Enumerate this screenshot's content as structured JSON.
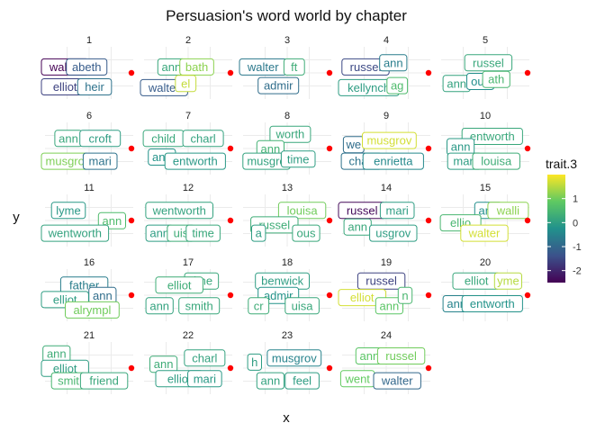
{
  "chart_data": {
    "type": "scatter",
    "title": "Persuasion's word world by chapter",
    "xlabel": "x",
    "ylabel": "y",
    "facet_by": "chapter",
    "legend": {
      "title": "trait.3",
      "position": "right",
      "ticks": [
        1,
        0,
        -1,
        -2
      ],
      "range": [
        -2.5,
        2.0
      ],
      "palette": [
        "#440154",
        "#3b528b",
        "#21918c",
        "#5ec962",
        "#fde725"
      ]
    },
    "grid": true,
    "panels": [
      {
        "chapter": "1",
        "words": [
          {
            "word": "walter",
            "x": 0.12,
            "y": 0.4,
            "trait3": -2.5
          },
          {
            "word": "elizabeth",
            "x": 0.48,
            "y": 0.4,
            "trait3": -1.2,
            "shown": "abeth"
          },
          {
            "word": "elliot",
            "x": 0.1,
            "y": 0.88,
            "trait3": -1.6
          },
          {
            "word": "heir",
            "x": 0.58,
            "y": 0.88,
            "trait3": -0.8
          }
        ]
      },
      {
        "chapter": "2",
        "words": [
          {
            "word": "ann",
            "x": 0.3,
            "y": 0.4,
            "trait3": 0.2
          },
          {
            "word": "bath",
            "x": 0.62,
            "y": 0.4,
            "trait3": 1.2,
            "shown": "bath"
          },
          {
            "word": "walter",
            "x": 0.15,
            "y": 0.9,
            "trait3": -1.2
          },
          {
            "word": "isabel",
            "x": 0.48,
            "y": 0.8,
            "trait3": 1.6,
            "shown": "el"
          }
        ]
      },
      {
        "chapter": "3",
        "words": [
          {
            "word": "walter",
            "x": 0.15,
            "y": 0.4,
            "trait3": -0.7
          },
          {
            "word": "croft",
            "x": 0.6,
            "y": 0.4,
            "trait3": 0.3,
            "shown": "ft"
          },
          {
            "word": "admir",
            "x": 0.4,
            "y": 0.85,
            "trait3": -0.9
          }
        ]
      },
      {
        "chapter": "4",
        "words": [
          {
            "word": "russel",
            "x": 0.25,
            "y": 0.4,
            "trait3": -1.5
          },
          {
            "word": "ann",
            "x": 0.6,
            "y": 0.3,
            "trait3": -0.6
          },
          {
            "word": "kellynch",
            "x": 0.2,
            "y": 0.9,
            "trait3": 0.0
          },
          {
            "word": "bag",
            "x": 0.65,
            "y": 0.85,
            "trait3": 0.6,
            "shown": "ag"
          }
        ]
      },
      {
        "chapter": "5",
        "words": [
          {
            "word": "russel",
            "x": 0.55,
            "y": 0.3,
            "trait3": 0.2
          },
          {
            "word": "ann",
            "x": 0.15,
            "y": 0.8,
            "trait3": 0.1
          },
          {
            "word": "house",
            "x": 0.45,
            "y": 0.75,
            "trait3": -0.3,
            "shown": "ous"
          },
          {
            "word": "bath",
            "x": 0.65,
            "y": 0.7,
            "trait3": 0.5,
            "shown": "ath"
          }
        ]
      },
      {
        "chapter": "6",
        "words": [
          {
            "word": "ann",
            "x": 0.25,
            "y": 0.3,
            "trait3": 0.2
          },
          {
            "word": "croft",
            "x": 0.65,
            "y": 0.3,
            "trait3": 0.0
          },
          {
            "word": "musgrove",
            "x": 0.15,
            "y": 0.85,
            "trait3": 1.1,
            "shown": "musgro"
          },
          {
            "word": "mari",
            "x": 0.65,
            "y": 0.85,
            "trait3": -0.8
          }
        ]
      },
      {
        "chapter": "7",
        "words": [
          {
            "word": "child",
            "x": 0.2,
            "y": 0.3,
            "trait3": 0.2
          },
          {
            "word": "charl",
            "x": 0.7,
            "y": 0.3,
            "trait3": 0.1
          },
          {
            "word": "ann",
            "x": 0.18,
            "y": 0.75,
            "trait3": -0.2
          },
          {
            "word": "wentworth",
            "x": 0.6,
            "y": 0.85,
            "trait3": -0.1,
            "shown": "entworth"
          }
        ]
      },
      {
        "chapter": "8",
        "words": [
          {
            "word": "wentworth",
            "x": 0.55,
            "y": 0.2,
            "trait3": 0.2,
            "shown": "worth"
          },
          {
            "word": "ann",
            "x": 0.3,
            "y": 0.55,
            "trait3": 0.4
          },
          {
            "word": "musgrove",
            "x": 0.25,
            "y": 0.85,
            "trait3": 0.1,
            "shown": "musgro"
          },
          {
            "word": "time",
            "x": 0.65,
            "y": 0.8,
            "trait3": 0.0
          }
        ]
      },
      {
        "chapter": "9",
        "words": [
          {
            "word": "wentworth",
            "x": 0.1,
            "y": 0.45,
            "trait3": -0.9,
            "shown": "we"
          },
          {
            "word": "musgrov",
            "x": 0.55,
            "y": 0.35,
            "trait3": 1.7
          },
          {
            "word": "charl",
            "x": 0.2,
            "y": 0.85,
            "trait3": -0.8
          },
          {
            "word": "henrietta",
            "x": 0.6,
            "y": 0.85,
            "trait3": -0.4,
            "shown": "enrietta"
          }
        ]
      },
      {
        "chapter": "10",
        "words": [
          {
            "word": "wentworth",
            "x": 0.6,
            "y": 0.25,
            "trait3": 0.2,
            "shown": "entworth"
          },
          {
            "word": "ann",
            "x": 0.2,
            "y": 0.5,
            "trait3": -0.1
          },
          {
            "word": "mari",
            "x": 0.25,
            "y": 0.85,
            "trait3": 0.0
          },
          {
            "word": "louisa",
            "x": 0.65,
            "y": 0.85,
            "trait3": 0.3
          }
        ]
      },
      {
        "chapter": "11",
        "words": [
          {
            "word": "lyme",
            "x": 0.25,
            "y": 0.3,
            "trait3": -0.1
          },
          {
            "word": "ann",
            "x": 0.8,
            "y": 0.55,
            "trait3": 0.6
          },
          {
            "word": "wentworth",
            "x": 0.3,
            "y": 0.85,
            "trait3": 0.1,
            "shown": "wentworth"
          }
        ]
      },
      {
        "chapter": "12",
        "words": [
          {
            "word": "wentworth",
            "x": 0.4,
            "y": 0.3,
            "trait3": 0.1
          },
          {
            "word": "ann",
            "x": 0.15,
            "y": 0.85,
            "trait3": 0.0
          },
          {
            "word": "louisa",
            "x": 0.42,
            "y": 0.85,
            "trait3": 0.3,
            "shown": "uis"
          },
          {
            "word": "time",
            "x": 0.7,
            "y": 0.85,
            "trait3": 0.2
          }
        ]
      },
      {
        "chapter": "13",
        "words": [
          {
            "word": "louisa",
            "x": 0.7,
            "y": 0.3,
            "trait3": 1.0
          },
          {
            "word": "russel",
            "x": 0.35,
            "y": 0.65,
            "trait3": 0.3
          },
          {
            "word": "ann",
            "x": 0.15,
            "y": 0.85,
            "trait3": 0.0,
            "shown": "a"
          },
          {
            "word": "house",
            "x": 0.75,
            "y": 0.85,
            "trait3": 0.2,
            "shown": "ous"
          }
        ]
      },
      {
        "chapter": "14",
        "words": [
          {
            "word": "russel",
            "x": 0.2,
            "y": 0.3,
            "trait3": -2.4
          },
          {
            "word": "mari",
            "x": 0.65,
            "y": 0.3,
            "trait3": 0.0
          },
          {
            "word": "ann",
            "x": 0.15,
            "y": 0.7,
            "trait3": 0.2
          },
          {
            "word": "musgrove",
            "x": 0.6,
            "y": 0.85,
            "trait3": 0.0,
            "shown": "usgrov"
          }
        ]
      },
      {
        "chapter": "15",
        "words": [
          {
            "word": "ann",
            "x": 0.55,
            "y": 0.3,
            "trait3": -0.3
          },
          {
            "word": "walli",
            "x": 0.8,
            "y": 0.3,
            "trait3": 1.2
          },
          {
            "word": "elliot",
            "x": 0.2,
            "y": 0.6,
            "trait3": 0.5,
            "shown": "ellio"
          },
          {
            "word": "walter",
            "x": 0.5,
            "y": 0.85,
            "trait3": 1.7
          }
        ]
      },
      {
        "chapter": "16",
        "words": [
          {
            "word": "father",
            "x": 0.45,
            "y": 0.3,
            "trait3": -0.6
          },
          {
            "word": "ann",
            "x": 0.68,
            "y": 0.55,
            "trait3": -0.9
          },
          {
            "word": "elliot",
            "x": 0.15,
            "y": 0.65,
            "trait3": 0.0
          },
          {
            "word": "dalrymple",
            "x": 0.55,
            "y": 0.9,
            "trait3": 1.0,
            "shown": "alrympl"
          }
        ]
      },
      {
        "chapter": "17",
        "words": [
          {
            "word": "time",
            "x": 0.68,
            "y": 0.2,
            "trait3": 0.2
          },
          {
            "word": "elliot",
            "x": 0.4,
            "y": 0.3,
            "trait3": 0.3
          },
          {
            "word": "ann",
            "x": 0.15,
            "y": 0.8,
            "trait3": 0.1
          },
          {
            "word": "smith",
            "x": 0.65,
            "y": 0.8,
            "trait3": 0.2
          }
        ]
      },
      {
        "chapter": "18",
        "words": [
          {
            "word": "benwick",
            "x": 0.45,
            "y": 0.2,
            "trait3": 0.0
          },
          {
            "word": "admir",
            "x": 0.4,
            "y": 0.55,
            "trait3": -0.2
          },
          {
            "word": "croft",
            "x": 0.15,
            "y": 0.8,
            "trait3": 0.3,
            "shown": "cr"
          },
          {
            "word": "louisa",
            "x": 0.7,
            "y": 0.8,
            "trait3": 0.2,
            "shown": "uisa"
          }
        ]
      },
      {
        "chapter": "19",
        "words": [
          {
            "word": "russel",
            "x": 0.45,
            "y": 0.2,
            "trait3": -1.6
          },
          {
            "word": "elliot",
            "x": 0.2,
            "y": 0.6,
            "trait3": 1.7
          },
          {
            "word": "ann",
            "x": 0.55,
            "y": 0.8,
            "trait3": 0.8
          },
          {
            "word": "mari",
            "x": 0.75,
            "y": 0.55,
            "trait3": 0.5,
            "shown": "n"
          }
        ]
      },
      {
        "chapter": "20",
        "words": [
          {
            "word": "elliot",
            "x": 0.4,
            "y": 0.2,
            "trait3": 0.2
          },
          {
            "word": "lyme",
            "x": 0.8,
            "y": 0.2,
            "trait3": 1.5,
            "shown": "yme"
          },
          {
            "word": "ann",
            "x": 0.15,
            "y": 0.75,
            "trait3": -0.5
          },
          {
            "word": "wentworth",
            "x": 0.6,
            "y": 0.75,
            "trait3": -0.2,
            "shown": "entworth"
          }
        ]
      },
      {
        "chapter": "21",
        "words": [
          {
            "word": "ann",
            "x": 0.1,
            "y": 0.2,
            "trait3": 0.3
          },
          {
            "word": "elliot",
            "x": 0.18,
            "y": 0.55,
            "trait3": 0.0
          },
          {
            "word": "smith",
            "x": 0.25,
            "y": 0.85,
            "trait3": 0.5,
            "shown": "smit"
          },
          {
            "word": "friend",
            "x": 0.7,
            "y": 0.85,
            "trait3": 0.2
          }
        ]
      },
      {
        "chapter": "22",
        "words": [
          {
            "word": "ann",
            "x": 0.2,
            "y": 0.45,
            "trait3": 0.3
          },
          {
            "word": "charl",
            "x": 0.72,
            "y": 0.3,
            "trait3": 0.1
          },
          {
            "word": "elliot",
            "x": 0.4,
            "y": 0.8,
            "trait3": 0.0
          },
          {
            "word": "mari",
            "x": 0.72,
            "y": 0.8,
            "trait3": -0.1
          }
        ]
      },
      {
        "chapter": "23",
        "words": [
          {
            "word": "harville",
            "x": 0.1,
            "y": 0.4,
            "trait3": 0.0,
            "shown": "h"
          },
          {
            "word": "musgrov",
            "x": 0.6,
            "y": 0.3,
            "trait3": -0.5
          },
          {
            "word": "ann",
            "x": 0.3,
            "y": 0.85,
            "trait3": 0.1
          },
          {
            "word": "feel",
            "x": 0.7,
            "y": 0.85,
            "trait3": 0.0
          }
        ]
      },
      {
        "chapter": "24",
        "words": [
          {
            "word": "ann",
            "x": 0.3,
            "y": 0.25,
            "trait3": 0.8
          },
          {
            "word": "russel",
            "x": 0.7,
            "y": 0.25,
            "trait3": 1.0
          },
          {
            "word": "wentworth",
            "x": 0.15,
            "y": 0.8,
            "trait3": 0.9,
            "shown": "went"
          },
          {
            "word": "walter",
            "x": 0.65,
            "y": 0.85,
            "trait3": -1.0
          }
        ]
      }
    ]
  }
}
